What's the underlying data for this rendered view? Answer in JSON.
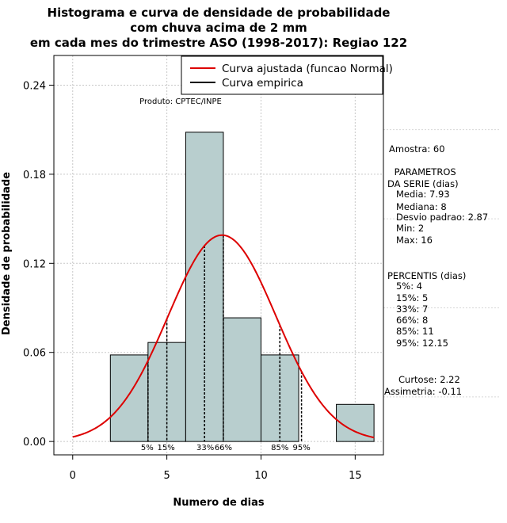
{
  "chart_data": {
    "type": "bar",
    "title": [
      "Histograma e curva de densidade de probabilidade",
      "com chuva acima de 2 mm",
      "em cada mes do trimestre ASO (1998-2017): Regiao 122"
    ],
    "xlabel": "Numero de dias",
    "ylabel": "Densidade de probabilidade",
    "xlim": [
      -1,
      16.5
    ],
    "ylim": [
      -0.009,
      0.26
    ],
    "x_ticks": [
      0,
      5,
      10,
      15
    ],
    "x_tick_labels": [
      "0",
      "5",
      "10",
      "15"
    ],
    "y_ticks": [
      0.0,
      0.06,
      0.12,
      0.18,
      0.24
    ],
    "y_tick_labels": [
      "0.00",
      "0.06",
      "0.12",
      "0.18",
      "0.24"
    ],
    "grid": true,
    "bins": [
      {
        "x0": 2,
        "x1": 4,
        "density": 0.0583
      },
      {
        "x0": 4,
        "x1": 6,
        "density": 0.0667
      },
      {
        "x0": 6,
        "x1": 8,
        "density": 0.2083
      },
      {
        "x0": 8,
        "x1": 10,
        "density": 0.0833
      },
      {
        "x0": 10,
        "x1": 12,
        "density": 0.0583
      },
      {
        "x0": 12,
        "x1": 14,
        "density": 0.0
      },
      {
        "x0": 14,
        "x1": 16,
        "density": 0.025
      }
    ],
    "bar_color": "#b8cece",
    "normal_curve": {
      "mean": 7.93,
      "sd": 2.87,
      "x_range": [
        0,
        16
      ],
      "color": "#dd0000"
    },
    "legend": {
      "position": "top-right",
      "entries": [
        {
          "label": "Curva ajustada (funcao Normal)",
          "color": "#dd0000"
        },
        {
          "label": "Curva empirica",
          "color": "#000000"
        }
      ]
    },
    "percentiles": [
      {
        "label": "5%",
        "value": 4
      },
      {
        "label": "15%",
        "value": 5
      },
      {
        "label": "33%",
        "value": 7
      },
      {
        "label": "66%",
        "value": 8
      },
      {
        "label": "85%",
        "value": 11
      },
      {
        "label": "95%",
        "value": 12.15
      }
    ],
    "product_label": "Produto: CPTEC/INPE",
    "side_panel": [
      "Amostra: 60",
      " PARAMETROS",
      "DA SERIE (dias)",
      "   Media: 7.93",
      "   Mediana: 8",
      "   Desvio padrao: 2.87",
      "   Min: 2",
      "   Max: 16",
      "PERCENTIS (dias)",
      "   5%: 4",
      "   15%: 5",
      "   33%: 7",
      "   66%: 8",
      "   85%: 11",
      "   95%: 12.15",
      "Curtose: 2.22",
      "Assimetria: -0.11"
    ]
  }
}
